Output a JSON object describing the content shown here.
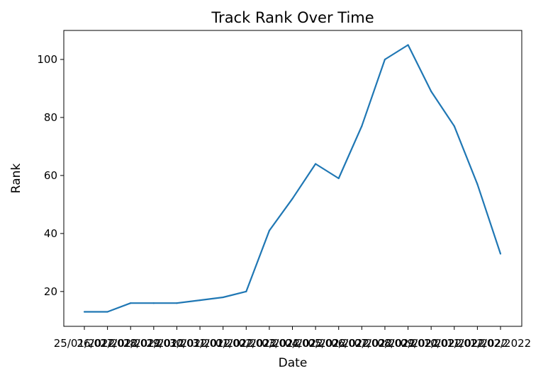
{
  "chart_data": {
    "type": "line",
    "title": "Track Rank Over Time",
    "xlabel": "Date",
    "ylabel": "Rank",
    "categories": [
      "25/01/2022",
      "26/01/2022",
      "27/01/2022",
      "28/01/2022",
      "29/01/2022",
      "30/01/2022",
      "31/01/2022",
      "01/02/2022",
      "02/02/2022",
      "03/02/2022",
      "04/02/2022",
      "05/02/2022",
      "06/02/2022",
      "07/02/2022",
      "08/02/2022",
      "09/02/2022",
      "10/02/2022",
      "11/02/2022",
      "12/02/2022"
    ],
    "series": [
      {
        "values": [
          13,
          13,
          16,
          16,
          16,
          17,
          18,
          20,
          41,
          52,
          64,
          59,
          77,
          100,
          105,
          89,
          77,
          57,
          33
        ],
        "color": "#1f77b4"
      }
    ],
    "y_ticks": [
      20,
      40,
      60,
      80,
      100
    ],
    "ylim": [
      8,
      110
    ],
    "grid": false,
    "legend": "none"
  }
}
